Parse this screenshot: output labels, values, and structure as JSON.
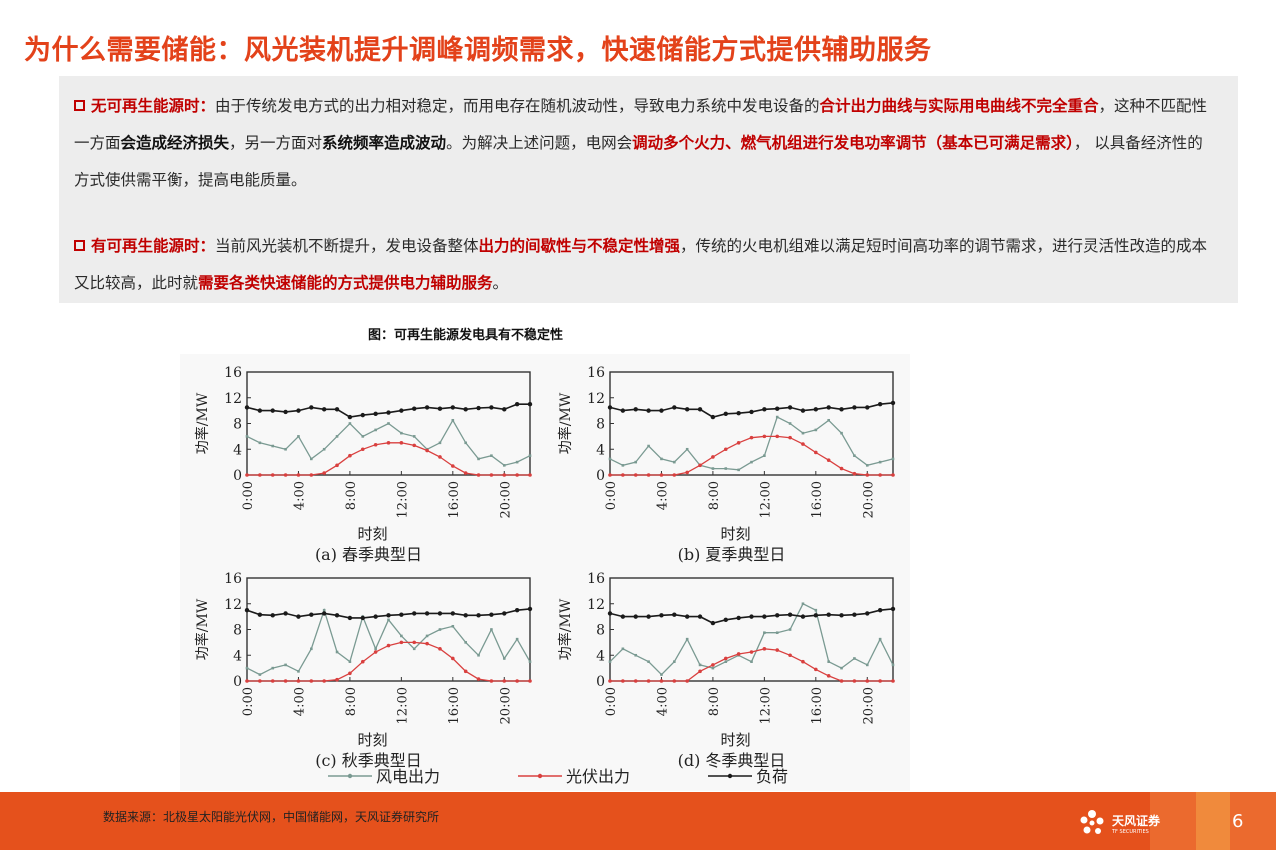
{
  "title": "为什么需要储能：风光装机提升调峰调频需求，快速储能方式提供辅助服务",
  "para1": {
    "lead": "无可再生能源时：",
    "t1": "由于传统发电方式的出力相对稳定，而用电存在随机波动性，导致电力系统中发电设备的",
    "h1": "合计出力曲线与实际用电曲线不完全重合",
    "t2": "，这种不匹配性一方面",
    "b1": "会造成经济损失",
    "t3": "，另一方面对",
    "b2": "系统频率造成波动",
    "t4": "。为解决上述问题，电网会",
    "h2": "调动多个火力、燃气机组进行发电功率调节（基本已可满足需求）",
    "t5": "， 以具备经济性的方式使供需平衡，提高电能质量。"
  },
  "para2": {
    "lead": "有可再生能源时：",
    "t1": "当前风光装机不断提升，发电设备整体",
    "h1": "出力的间歇性与不稳定性增强",
    "t2": "，传统的火电机组难以满足短时间高功率的调节需求，进行灵活性改造的成本又比较高，此时就",
    "h2": "需要各类快速储能的方式提供电力辅助服务",
    "t3": "。"
  },
  "figure_title": "图：可再生能源发电具有不稳定性",
  "source": "数据来源：北极星太阳能光伏网，中国储能网，天风证券研究所",
  "logo_text": "天风证券",
  "logo_sub": "TF SECURITIES",
  "page_number": "6",
  "colors": {
    "accent": "#e3421a",
    "highlight": "#c00000",
    "footer": "#e5511c",
    "wind": "#7a9a92",
    "solar": "#d9403f",
    "load": "#1a1a1a"
  },
  "chart_data": [
    {
      "type": "line",
      "title": "(a) 春季典型日",
      "xlabel": "时刻",
      "ylabel": "功率/MW",
      "x": [
        0,
        1,
        2,
        3,
        4,
        5,
        6,
        7,
        8,
        9,
        10,
        11,
        12,
        13,
        14,
        15,
        16,
        17,
        18,
        19,
        20,
        21,
        22
      ],
      "xticks": [
        "0:00",
        "4:00",
        "8:00",
        "12:00",
        "16:00",
        "20:00"
      ],
      "ylim": [
        0,
        16
      ],
      "yticks": [
        "0",
        "4",
        "8",
        "12",
        "16"
      ],
      "series": [
        {
          "name": "风电出力",
          "values": [
            6,
            5,
            4.5,
            4,
            6,
            2.5,
            4,
            6,
            8,
            6,
            7,
            8,
            6.5,
            6,
            4,
            5,
            8.5,
            5,
            2.5,
            3,
            1.5,
            2,
            3
          ]
        },
        {
          "name": "光伏出力",
          "values": [
            0,
            0,
            0,
            0,
            0,
            0,
            0.3,
            1.5,
            3,
            4,
            4.7,
            5,
            5,
            4.6,
            3.8,
            2.8,
            1.4,
            0.3,
            0,
            0,
            0,
            0,
            0
          ]
        },
        {
          "name": "负荷",
          "values": [
            10.5,
            10,
            10,
            9.8,
            10,
            10.5,
            10.2,
            10.2,
            9,
            9.3,
            9.5,
            9.7,
            10,
            10.3,
            10.5,
            10.3,
            10.5,
            10.2,
            10.4,
            10.5,
            10.2,
            11,
            11
          ]
        }
      ]
    },
    {
      "type": "line",
      "title": "(b) 夏季典型日",
      "xlabel": "时刻",
      "ylabel": "功率/MW",
      "x": [
        0,
        1,
        2,
        3,
        4,
        5,
        6,
        7,
        8,
        9,
        10,
        11,
        12,
        13,
        14,
        15,
        16,
        17,
        18,
        19,
        20,
        21,
        22
      ],
      "xticks": [
        "0:00",
        "4:00",
        "8:00",
        "12:00",
        "16:00",
        "20:00"
      ],
      "ylim": [
        0,
        16
      ],
      "yticks": [
        "0",
        "4",
        "8",
        "12",
        "16"
      ],
      "series": [
        {
          "name": "风电出力",
          "values": [
            2.5,
            1.5,
            2,
            4.5,
            2.5,
            2,
            4,
            1.5,
            1,
            1,
            0.8,
            2,
            3,
            9,
            8,
            6.5,
            7,
            8.5,
            6.5,
            3,
            1.5,
            2,
            2.5
          ]
        },
        {
          "name": "光伏出力",
          "values": [
            0,
            0,
            0,
            0,
            0,
            0,
            0.4,
            1.5,
            2.8,
            4,
            5,
            5.8,
            6,
            6,
            5.8,
            4.8,
            3.5,
            2.3,
            1,
            0.2,
            0,
            0,
            0
          ]
        },
        {
          "name": "负荷",
          "values": [
            10.5,
            10,
            10.2,
            10,
            10,
            10.5,
            10.2,
            10.2,
            9,
            9.5,
            9.6,
            9.8,
            10.2,
            10.3,
            10.5,
            10,
            10.2,
            10.5,
            10.2,
            10.5,
            10.5,
            11,
            11.2
          ]
        }
      ]
    },
    {
      "type": "line",
      "title": "(c) 秋季典型日",
      "xlabel": "时刻",
      "ylabel": "功率/MW",
      "x": [
        0,
        1,
        2,
        3,
        4,
        5,
        6,
        7,
        8,
        9,
        10,
        11,
        12,
        13,
        14,
        15,
        16,
        17,
        18,
        19,
        20,
        21,
        22
      ],
      "xticks": [
        "0:00",
        "4:00",
        "8:00",
        "12:00",
        "16:00",
        "20:00"
      ],
      "ylim": [
        0,
        16
      ],
      "yticks": [
        "0",
        "4",
        "8",
        "12",
        "16"
      ],
      "series": [
        {
          "name": "风电出力",
          "values": [
            2,
            1,
            2,
            2.5,
            1.5,
            5,
            11,
            4.5,
            3,
            10,
            5,
            9.5,
            7,
            5,
            7,
            8,
            8.5,
            6,
            4,
            8,
            3.5,
            6.5,
            3
          ]
        },
        {
          "name": "光伏出力",
          "values": [
            0,
            0,
            0,
            0,
            0,
            0,
            0,
            0.2,
            1.2,
            3,
            4.5,
            5.5,
            6,
            6,
            5.8,
            5,
            3.5,
            1.5,
            0.3,
            0,
            0,
            0,
            0
          ]
        },
        {
          "name": "负荷",
          "values": [
            11,
            10.3,
            10.2,
            10.5,
            10,
            10.3,
            10.5,
            10.2,
            9.8,
            9.8,
            10,
            10.2,
            10.3,
            10.5,
            10.5,
            10.5,
            10.5,
            10.2,
            10.2,
            10.3,
            10.5,
            11,
            11.2
          ]
        }
      ]
    },
    {
      "type": "line",
      "title": "(d) 冬季典型日",
      "xlabel": "时刻",
      "ylabel": "功率/MW",
      "x": [
        0,
        1,
        2,
        3,
        4,
        5,
        6,
        7,
        8,
        9,
        10,
        11,
        12,
        13,
        14,
        15,
        16,
        17,
        18,
        19,
        20,
        21,
        22
      ],
      "xticks": [
        "0:00",
        "4:00",
        "8:00",
        "12:00",
        "16:00",
        "20:00"
      ],
      "ylim": [
        0,
        16
      ],
      "yticks": [
        "0",
        "4",
        "8",
        "12",
        "16"
      ],
      "series": [
        {
          "name": "风电出力",
          "values": [
            3,
            5,
            4,
            3,
            1,
            3,
            6.5,
            2.5,
            2,
            3,
            4,
            3,
            7.5,
            7.5,
            8,
            12,
            11,
            3,
            2,
            3.5,
            2.5,
            6.5,
            2.5
          ]
        },
        {
          "name": "光伏出力",
          "values": [
            0,
            0,
            0,
            0,
            0,
            0,
            0,
            1.5,
            2.5,
            3.5,
            4.2,
            4.5,
            5,
            4.8,
            4,
            3,
            1.8,
            0.8,
            0,
            0,
            0,
            0,
            0
          ]
        },
        {
          "name": "负荷",
          "values": [
            10.5,
            10,
            10,
            10,
            10.2,
            10.3,
            10,
            10,
            9,
            9.5,
            9.8,
            10,
            10,
            10.2,
            10.3,
            10,
            10.2,
            10.3,
            10.2,
            10.3,
            10.5,
            11,
            11.2
          ]
        }
      ]
    }
  ]
}
